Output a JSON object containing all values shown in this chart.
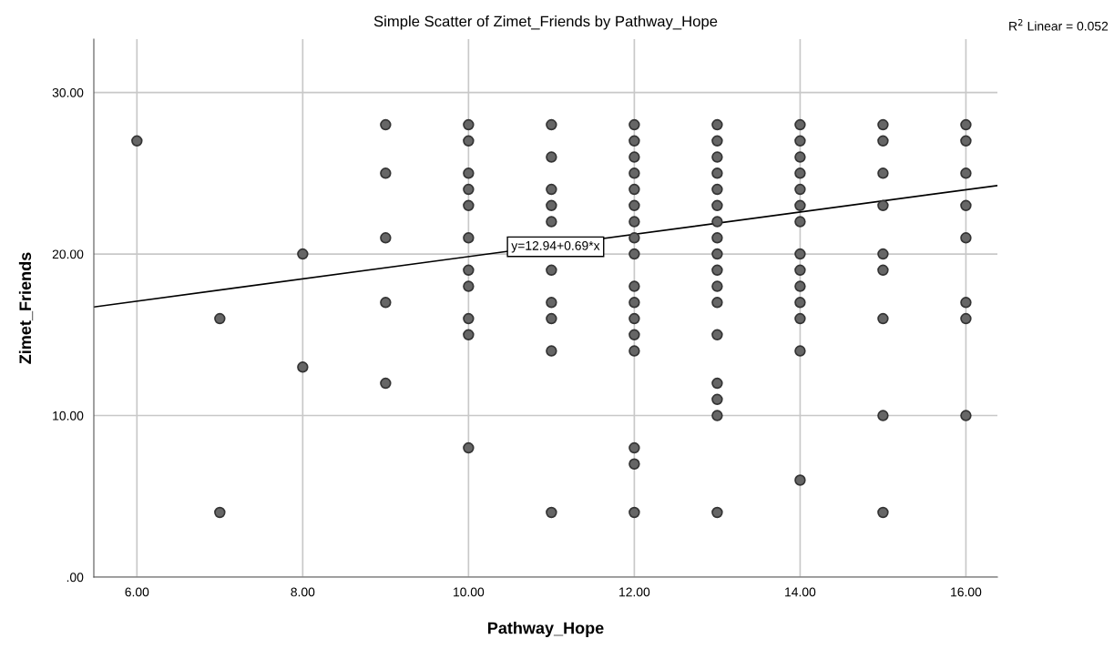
{
  "chart_data": {
    "type": "scatter",
    "title": "Simple Scatter of Zimet_Friends by Pathway_Hope",
    "xlabel": "Pathway_Hope",
    "ylabel": "Zimet_Friends",
    "series": [
      {
        "color": "#666666",
        "marker": "circle",
        "x": [
          6,
          7,
          7,
          8,
          8,
          9,
          9,
          9,
          9,
          9,
          10,
          10,
          10,
          10,
          10,
          10,
          10,
          10,
          10,
          10,
          10,
          11,
          11,
          11,
          11,
          11,
          11,
          11,
          11,
          11,
          11,
          12,
          12,
          12,
          12,
          12,
          12,
          12,
          12,
          12,
          12,
          12,
          12,
          12,
          12,
          12,
          12,
          12,
          13,
          13,
          13,
          13,
          13,
          13,
          13,
          13,
          13,
          13,
          13,
          13,
          13,
          13,
          13,
          13,
          13,
          14,
          14,
          14,
          14,
          14,
          14,
          14,
          14,
          14,
          14,
          14,
          14,
          14,
          14,
          15,
          15,
          15,
          15,
          15,
          15,
          15,
          15,
          15,
          16,
          16,
          16,
          16,
          16,
          16,
          16,
          16
        ],
        "values": [
          27,
          16,
          4,
          20,
          13,
          28,
          25,
          21,
          17,
          12,
          28,
          27,
          25,
          24,
          23,
          21,
          19,
          18,
          16,
          15,
          8,
          28,
          26,
          24,
          23,
          22,
          19,
          17,
          16,
          14,
          4,
          28,
          27,
          26,
          25,
          24,
          23,
          22,
          21,
          20,
          18,
          17,
          16,
          15,
          14,
          8,
          7,
          4,
          28,
          27,
          26,
          25,
          24,
          23,
          22,
          21,
          20,
          19,
          18,
          17,
          15,
          12,
          11,
          10,
          4,
          28,
          27,
          26,
          25,
          24,
          23,
          22,
          20,
          19,
          18,
          17,
          16,
          14,
          6,
          28,
          27,
          25,
          23,
          20,
          19,
          16,
          10,
          4,
          28,
          27,
          25,
          23,
          21,
          17,
          16,
          10
        ]
      },
      {
        "type": "line",
        "color": "#000000",
        "marker": "none",
        "line_style": "solid",
        "x": [
          5.48,
          16.38
        ],
        "values": [
          16.72,
          24.24
        ]
      }
    ],
    "xlim": [
      5.48,
      16.38
    ],
    "ylim": [
      0,
      33.3
    ],
    "xticks": [
      {
        "value": 6,
        "label": "6.00"
      },
      {
        "value": 8,
        "label": "8.00"
      },
      {
        "value": 10,
        "label": "10.00"
      },
      {
        "value": 12,
        "label": "12.00"
      },
      {
        "value": 14,
        "label": "14.00"
      },
      {
        "value": 16,
        "label": "16.00"
      }
    ],
    "yticks": [
      {
        "value": 0,
        "label": ".00"
      },
      {
        "value": 10,
        "label": "10.00"
      },
      {
        "value": 20,
        "label": "20.00"
      },
      {
        "value": 30,
        "label": "30.00"
      }
    ],
    "grid": true,
    "annotations": [
      {
        "text": "y=12.94+0.69*x",
        "x": 11.05,
        "y": 20.45
      },
      "R$^{2}$ Linear = 0.052"
    ]
  }
}
